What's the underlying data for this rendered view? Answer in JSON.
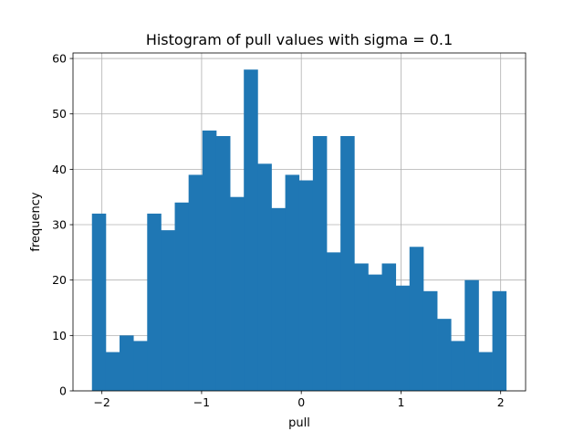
{
  "chart_data": {
    "type": "bar",
    "title": "Histogram of pull values with sigma = 0.1",
    "xlabel": "pull",
    "ylabel": "frequency",
    "xlim": [
      -2.29,
      2.25
    ],
    "ylim": [
      0,
      61
    ],
    "xticks": [
      -2,
      -1,
      0,
      1,
      2
    ],
    "xtick_labels": [
      "−2",
      "−1",
      "0",
      "1",
      "2"
    ],
    "yticks": [
      0,
      10,
      20,
      30,
      40,
      50,
      60
    ],
    "ytick_labels": [
      "0",
      "10",
      "20",
      "30",
      "40",
      "50",
      "60"
    ],
    "grid": true,
    "bar_color": "#1f77b4",
    "bins": {
      "start": -2.1,
      "width": 0.1385,
      "values": [
        32,
        7,
        10,
        9,
        32,
        29,
        34,
        39,
        47,
        46,
        35,
        58,
        41,
        33,
        39,
        38,
        46,
        25,
        46,
        23,
        21,
        23,
        19,
        26,
        18,
        13,
        9,
        20,
        7,
        18
      ]
    }
  }
}
